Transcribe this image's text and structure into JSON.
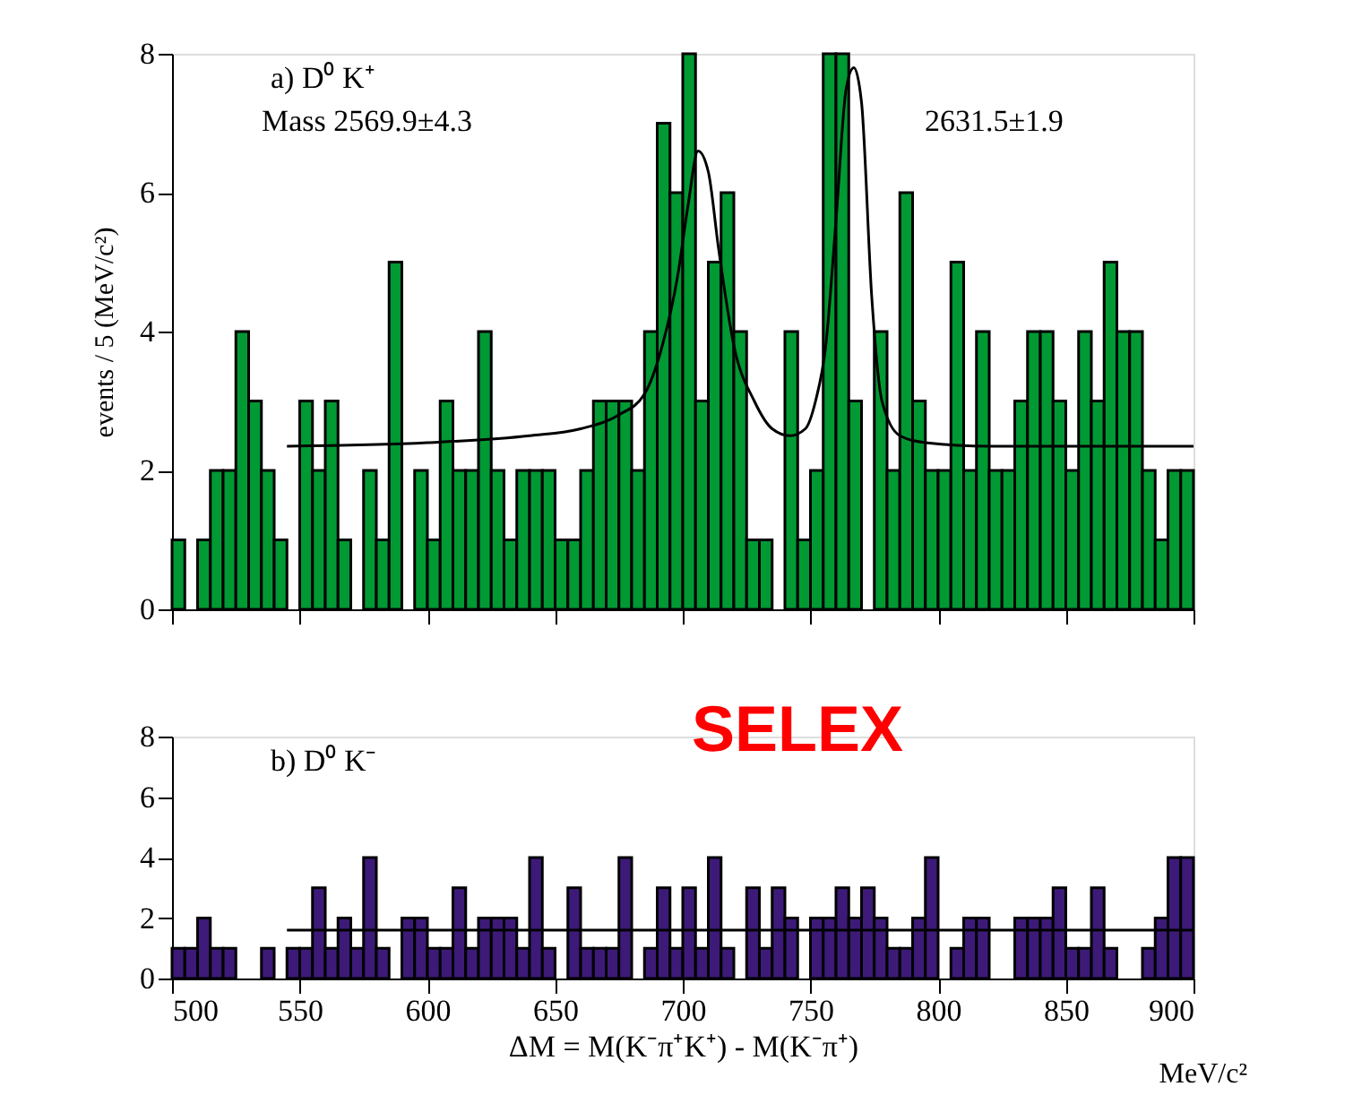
{
  "chart_data": [
    {
      "type": "histogram",
      "title": "a) D⁰ K⁺",
      "ylabel": "events / 5 (MeV/c²)",
      "xlim": [
        500,
        900
      ],
      "xticks": [
        500,
        550,
        600,
        650,
        700,
        750,
        800,
        850,
        900
      ],
      "ylim": [
        0,
        8
      ],
      "yticks": [
        0,
        2,
        4,
        6,
        8
      ],
      "tick_labels": "y",
      "grid": false,
      "annotations": [
        "Mass  2569.9±4.3",
        "2631.5±1.9"
      ],
      "bins": [
        500,
        505,
        510,
        515,
        520,
        525,
        530,
        535,
        540,
        545,
        550,
        555,
        560,
        565,
        570,
        575,
        580,
        585,
        590,
        595,
        600,
        605,
        610,
        615,
        620,
        625,
        630,
        635,
        640,
        645,
        650,
        655,
        660,
        665,
        670,
        675,
        680,
        685,
        690,
        695,
        700,
        705,
        710,
        715,
        720,
        725,
        730,
        735,
        740,
        745,
        750,
        755,
        760,
        765,
        770,
        775,
        780,
        785,
        790,
        795,
        800,
        805,
        810,
        815,
        820,
        825,
        830,
        835,
        840,
        845,
        850,
        855,
        860,
        865,
        870,
        875,
        880,
        885,
        890,
        895,
        900
      ],
      "series": [
        {
          "type": "histogram",
          "color": "#009933",
          "values": [
            1,
            0,
            1,
            2,
            2,
            4,
            3,
            2,
            1,
            0,
            3,
            2,
            3,
            1,
            0,
            2,
            1,
            5,
            0,
            2,
            1,
            3,
            2,
            2,
            4,
            2,
            1,
            2,
            2,
            2,
            1,
            1,
            2,
            3,
            3,
            3,
            2,
            4,
            7,
            6,
            8,
            3,
            5,
            6,
            4,
            1,
            1,
            0,
            4,
            1,
            2,
            8,
            8,
            3,
            0,
            4,
            2,
            6,
            3,
            2,
            2,
            5,
            2,
            4,
            2,
            2,
            3,
            4,
            4,
            3,
            2,
            4,
            3,
            5,
            4,
            4,
            2,
            1,
            2,
            2
          ]
        },
        {
          "type": "line",
          "color": "#000000",
          "x": [
            545,
            600,
            640,
            660,
            675,
            685,
            692,
            698,
            702,
            706,
            710,
            714,
            720,
            728,
            735,
            742,
            748,
            752,
            756,
            760,
            764,
            767,
            770,
            774,
            778,
            785,
            795,
            820,
            900
          ],
          "values": [
            2.35,
            2.4,
            2.5,
            2.6,
            2.8,
            3.1,
            3.8,
            4.8,
            5.8,
            6.6,
            6.3,
            5.2,
            3.8,
            3.0,
            2.6,
            2.5,
            2.6,
            3.0,
            3.8,
            5.6,
            7.5,
            7.8,
            7.3,
            4.5,
            3.0,
            2.5,
            2.4,
            2.35,
            2.35
          ]
        }
      ]
    },
    {
      "type": "histogram",
      "title": "b) D⁰ K⁻",
      "xlabel": "ΔM = M(K⁻π⁺K⁺) - M(K⁻π⁺)",
      "xlim": [
        500,
        900
      ],
      "xticks": [
        500,
        550,
        600,
        650,
        700,
        750,
        800,
        850,
        900
      ],
      "ylim": [
        0,
        8
      ],
      "yticks": [
        0,
        2,
        4,
        6,
        8
      ],
      "grid": false,
      "annotations": [
        "SELEX",
        "MeV/c²"
      ],
      "bins": [
        500,
        505,
        510,
        515,
        520,
        525,
        530,
        535,
        540,
        545,
        550,
        555,
        560,
        565,
        570,
        575,
        580,
        585,
        590,
        595,
        600,
        605,
        610,
        615,
        620,
        625,
        630,
        635,
        640,
        645,
        650,
        655,
        660,
        665,
        670,
        675,
        680,
        685,
        690,
        695,
        700,
        705,
        710,
        715,
        720,
        725,
        730,
        735,
        740,
        745,
        750,
        755,
        760,
        765,
        770,
        775,
        780,
        785,
        790,
        795,
        800,
        805,
        810,
        815,
        820,
        825,
        830,
        835,
        840,
        845,
        850,
        855,
        860,
        865,
        870,
        875,
        880,
        885,
        890,
        895,
        900
      ],
      "series": [
        {
          "type": "histogram",
          "color": "#3d1a78",
          "values": [
            1,
            1,
            2,
            1,
            1,
            0,
            0,
            1,
            0,
            1,
            1,
            3,
            1,
            2,
            1,
            4,
            1,
            0,
            2,
            2,
            1,
            1,
            3,
            1,
            2,
            2,
            2,
            1,
            4,
            1,
            0,
            3,
            1,
            1,
            1,
            4,
            0,
            1,
            3,
            1,
            3,
            1,
            4,
            1,
            0,
            3,
            1,
            3,
            2,
            0,
            2,
            2,
            3,
            2,
            3,
            2,
            1,
            1,
            2,
            4,
            0,
            1,
            2,
            2,
            0,
            0,
            2,
            2,
            2,
            3,
            1,
            1,
            3,
            1,
            0,
            0,
            1,
            2,
            4,
            4
          ]
        },
        {
          "type": "line",
          "color": "#000000",
          "x": [
            545,
            900
          ],
          "values": [
            1.6,
            1.6
          ]
        }
      ]
    }
  ]
}
